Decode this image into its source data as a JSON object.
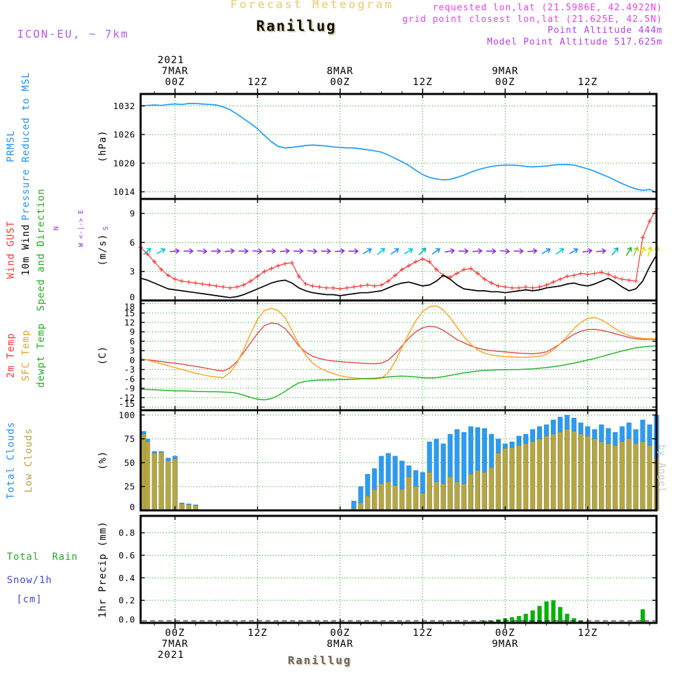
{
  "header": {
    "figure_title": "Forecast Meteogram",
    "station": "Ranillug",
    "model": "ICON-EU, ~ 7km",
    "meta_lines": [
      {
        "text": "requested lon,lat (21.5986E, 42.4922N)",
        "color": "#ee3cee"
      },
      {
        "text": "grid point closest lon,lat (21.625E, 42.5N)",
        "color": "#ee3cee"
      },
      {
        "text": "Point Altitude 444m",
        "color": "#b43cee"
      },
      {
        "text": "Model Point Altitude 517.625m",
        "color": "#b43cee"
      }
    ]
  },
  "footer": {
    "station": "Ranillug",
    "credit": "by Angel"
  },
  "labels": {
    "pressure": {
      "l1": "PRMSL",
      "l2": "Pressure Reduced to MSL",
      "unit": "(hPa)"
    },
    "wind": {
      "l1": "Wind GUST",
      "l2": "10m Wind",
      "l3": "Speed and Direction",
      "unit": "(m/s)",
      "compass_n": "N",
      "compass_s": "S",
      "compass_w": "W",
      "compass_e": "E",
      "compass_arrows": "<-|->"
    },
    "temperature": {
      "l1": "2m Temp",
      "l2": "SFC Temp",
      "l3": "dewpt Temp",
      "unit": "(C)"
    },
    "clouds": {
      "l1": "Total Clouds",
      "l2": "Low Clouds",
      "unit": "(%)"
    },
    "precip": {
      "l1": "Total  Rain",
      "l2": "Snow/1h",
      "l3": "[cm]",
      "unit_rot": "1hr Precip (mm)"
    }
  },
  "time_axis": {
    "year": "2021",
    "hours_domain": [
      -5,
      70
    ],
    "hours": {
      "start": -5,
      "step": 1,
      "count": 76
    },
    "major_ticks": [
      {
        "h": 0,
        "hour": "00Z",
        "day": "7MAR",
        "show_year": true
      },
      {
        "h": 12,
        "hour": "12Z"
      },
      {
        "h": 24,
        "hour": "00Z",
        "day": "8MAR"
      },
      {
        "h": 36,
        "hour": "12Z"
      },
      {
        "h": 48,
        "hour": "00Z",
        "day": "9MAR"
      },
      {
        "h": 60,
        "hour": "12Z"
      }
    ],
    "minor_step_hours": 3
  },
  "chart_data": [
    {
      "id": "pressure",
      "type": "line",
      "name": "PRMSL Pressure Reduced to MSL",
      "unit": "hPa",
      "ylim": [
        1012.5,
        1034.5
      ],
      "yticks": [
        1014,
        1020,
        1026,
        1032
      ],
      "series": [
        {
          "name": "PRMSL",
          "color": "#1e9aff",
          "width": 1.7,
          "values": [
            1032.0,
            1032.1,
            1032.2,
            1032.1,
            1032.3,
            1032.4,
            1032.3,
            1032.5,
            1032.5,
            1032.4,
            1032.3,
            1032.2,
            1031.8,
            1031.2,
            1030.3,
            1029.3,
            1028.3,
            1027.2,
            1025.8,
            1024.5,
            1023.5,
            1023.2,
            1023.3,
            1023.5,
            1023.7,
            1023.8,
            1023.7,
            1023.6,
            1023.4,
            1023.3,
            1023.2,
            1023.2,
            1023.0,
            1022.8,
            1022.6,
            1022.3,
            1021.7,
            1021.0,
            1020.3,
            1019.5,
            1018.5,
            1017.6,
            1017.0,
            1016.7,
            1016.5,
            1016.6,
            1017.0,
            1017.5,
            1018.1,
            1018.6,
            1019.0,
            1019.3,
            1019.5,
            1019.6,
            1019.6,
            1019.5,
            1019.3,
            1019.2,
            1019.3,
            1019.4,
            1019.6,
            1019.7,
            1019.7,
            1019.6,
            1019.2,
            1018.8,
            1018.3,
            1017.7,
            1017.1,
            1016.4,
            1015.7,
            1015.1,
            1014.6,
            1014.3,
            1014.5,
            1013.8
          ]
        }
      ]
    },
    {
      "id": "wind",
      "type": "line",
      "name": "Wind GUST / 10m Wind Speed and Direction",
      "unit": "m/s",
      "ylim": [
        0,
        10.5
      ],
      "yticks": [
        0,
        3,
        6,
        9
      ],
      "arrow_level": 5.1,
      "series": [
        {
          "name": "Wind GUST",
          "color": "#ff3030",
          "width": 1.2,
          "marker": "plus",
          "values": [
            5.5,
            4.8,
            4.0,
            3.2,
            2.6,
            2.2,
            2.0,
            1.9,
            1.8,
            1.7,
            1.6,
            1.5,
            1.4,
            1.3,
            1.4,
            1.6,
            2.0,
            2.5,
            3.0,
            3.3,
            3.6,
            3.8,
            3.9,
            2.5,
            1.7,
            1.5,
            1.4,
            1.3,
            1.3,
            1.2,
            1.3,
            1.4,
            1.5,
            1.6,
            1.5,
            1.6,
            2.0,
            2.6,
            3.2,
            3.6,
            4.0,
            4.3,
            4.0,
            3.2,
            2.6,
            2.4,
            2.8,
            3.2,
            3.3,
            2.8,
            2.2,
            1.8,
            1.5,
            1.4,
            1.3,
            1.3,
            1.4,
            1.3,
            1.4,
            1.6,
            1.9,
            2.2,
            2.5,
            2.6,
            2.8,
            2.7,
            2.8,
            2.9,
            2.7,
            2.4,
            2.2,
            2.1,
            2.0,
            6.5,
            8.2,
            9.5
          ]
        },
        {
          "name": "10m Wind",
          "color": "#000000",
          "width": 1.7,
          "values": [
            2.3,
            2.1,
            1.8,
            1.5,
            1.2,
            1.1,
            1.0,
            0.9,
            0.8,
            0.7,
            0.6,
            0.5,
            0.4,
            0.3,
            0.4,
            0.6,
            0.9,
            1.2,
            1.5,
            1.8,
            2.0,
            2.1,
            1.8,
            1.3,
            1.0,
            0.8,
            0.7,
            0.6,
            0.6,
            0.5,
            0.6,
            0.7,
            0.8,
            0.8,
            0.9,
            1.0,
            1.3,
            1.6,
            1.8,
            1.9,
            1.7,
            1.5,
            1.6,
            2.0,
            2.6,
            2.2,
            1.6,
            1.2,
            1.1,
            1.0,
            1.0,
            0.9,
            0.9,
            0.8,
            0.9,
            1.0,
            1.1,
            1.0,
            1.1,
            1.3,
            1.4,
            1.5,
            1.7,
            1.8,
            1.6,
            1.5,
            1.7,
            2.0,
            2.3,
            1.9,
            1.4,
            1.0,
            1.2,
            2.0,
            3.5,
            4.7
          ]
        }
      ],
      "direction_arrows": [
        {
          "h": -4,
          "a": -40,
          "c": "#00cccc"
        },
        {
          "h": -2,
          "a": -30,
          "c": "#00cccc"
        },
        {
          "h": 0,
          "a": -5,
          "c": "#8833ee"
        },
        {
          "h": 2,
          "a": 0,
          "c": "#8833ee"
        },
        {
          "h": 4,
          "a": 5,
          "c": "#8833ee"
        },
        {
          "h": 6,
          "a": 0,
          "c": "#8833ee"
        },
        {
          "h": 8,
          "a": -5,
          "c": "#8833ee"
        },
        {
          "h": 10,
          "a": 0,
          "c": "#8833ee"
        },
        {
          "h": 12,
          "a": 5,
          "c": "#8833ee"
        },
        {
          "h": 14,
          "a": 0,
          "c": "#8833ee"
        },
        {
          "h": 16,
          "a": -5,
          "c": "#8833ee"
        },
        {
          "h": 18,
          "a": 0,
          "c": "#8833ee"
        },
        {
          "h": 20,
          "a": 5,
          "c": "#8833ee"
        },
        {
          "h": 22,
          "a": 0,
          "c": "#8833ee"
        },
        {
          "h": 24,
          "a": -5,
          "c": "#8833ee"
        },
        {
          "h": 26,
          "a": 0,
          "c": "#8833ee"
        },
        {
          "h": 28,
          "a": -30,
          "c": "#1e90ff"
        },
        {
          "h": 30,
          "a": -40,
          "c": "#00cccc"
        },
        {
          "h": 32,
          "a": -35,
          "c": "#1e90ff"
        },
        {
          "h": 34,
          "a": -30,
          "c": "#00cccc"
        },
        {
          "h": 36,
          "a": -45,
          "c": "#00b7b7"
        },
        {
          "h": 38,
          "a": -35,
          "c": "#1e90ff"
        },
        {
          "h": 40,
          "a": -10,
          "c": "#8833ee"
        },
        {
          "h": 42,
          "a": 0,
          "c": "#8833ee"
        },
        {
          "h": 44,
          "a": -5,
          "c": "#8833ee"
        },
        {
          "h": 46,
          "a": 0,
          "c": "#8833ee"
        },
        {
          "h": 48,
          "a": 5,
          "c": "#8833ee"
        },
        {
          "h": 50,
          "a": 0,
          "c": "#8833ee"
        },
        {
          "h": 52,
          "a": -5,
          "c": "#8833ee"
        },
        {
          "h": 54,
          "a": -30,
          "c": "#1e90ff"
        },
        {
          "h": 56,
          "a": -35,
          "c": "#00cccc"
        },
        {
          "h": 58,
          "a": -30,
          "c": "#1e90ff"
        },
        {
          "h": 60,
          "a": -10,
          "c": "#8833ee"
        },
        {
          "h": 62,
          "a": -5,
          "c": "#8833ee"
        },
        {
          "h": 64,
          "a": -50,
          "c": "#00b7b7"
        },
        {
          "h": 66,
          "a": -60,
          "c": "#22bb22"
        },
        {
          "h": 67,
          "a": -65,
          "c": "#99cc22"
        },
        {
          "h": 68,
          "a": -70,
          "c": "#dddd00"
        },
        {
          "h": 69,
          "a": -72,
          "c": "#dddd00"
        },
        {
          "h": 70,
          "a": -75,
          "c": "#dddd00"
        }
      ]
    },
    {
      "id": "temperature",
      "type": "line",
      "name": "2m / SFC / dewpoint Temperature",
      "unit": "C",
      "ylim": [
        -16,
        19
      ],
      "yticks": [
        -15,
        -12,
        -9,
        -6,
        -3,
        0,
        3,
        6,
        9,
        12,
        15,
        18
      ],
      "series": [
        {
          "name": "2m Temp",
          "color": "#e05252",
          "width": 1.5,
          "values": [
            0.3,
            0.1,
            -0.2,
            -0.5,
            -0.8,
            -1.0,
            -1.3,
            -1.7,
            -2.0,
            -2.4,
            -2.8,
            -3.2,
            -3.5,
            -2.5,
            -0.5,
            2.5,
            5.5,
            8.5,
            11.0,
            11.8,
            11.5,
            10.0,
            7.5,
            4.5,
            2.5,
            1.2,
            0.5,
            0.0,
            -0.3,
            -0.5,
            -0.7,
            -0.8,
            -1.0,
            -1.1,
            -1.2,
            -1.0,
            0.0,
            2.0,
            4.5,
            7.0,
            9.0,
            10.3,
            10.8,
            10.5,
            9.5,
            8.0,
            6.5,
            5.5,
            4.5,
            3.8,
            3.3,
            3.0,
            2.8,
            2.6,
            2.4,
            2.2,
            2.1,
            2.0,
            2.2,
            2.6,
            3.8,
            5.2,
            6.8,
            8.2,
            9.2,
            9.7,
            9.8,
            9.5,
            9.0,
            8.4,
            7.8,
            7.2,
            6.8,
            6.6,
            6.6,
            6.6
          ]
        },
        {
          "name": "SFC Temp",
          "color": "#ffa426",
          "width": 1.5,
          "values": [
            0.5,
            0.0,
            -0.6,
            -1.2,
            -1.8,
            -2.4,
            -3.0,
            -3.6,
            -4.2,
            -4.7,
            -5.1,
            -5.4,
            -5.6,
            -4.0,
            -1.0,
            3.5,
            8.5,
            13.0,
            15.8,
            16.5,
            15.8,
            13.5,
            9.5,
            5.0,
            1.5,
            -1.0,
            -2.5,
            -3.5,
            -4.3,
            -5.0,
            -5.4,
            -5.7,
            -5.9,
            -6.0,
            -6.1,
            -5.8,
            -4.0,
            -0.5,
            4.0,
            8.5,
            12.5,
            15.5,
            17.0,
            17.3,
            16.0,
            13.5,
            10.5,
            7.5,
            5.0,
            3.2,
            2.2,
            1.6,
            1.3,
            1.1,
            1.0,
            0.9,
            0.9,
            1.0,
            1.2,
            1.8,
            3.2,
            5.2,
            7.6,
            10.0,
            12.0,
            13.3,
            13.6,
            12.8,
            11.5,
            10.0,
            8.7,
            7.8,
            7.2,
            6.9,
            6.8,
            6.8
          ]
        },
        {
          "name": "dewpt Temp",
          "color": "#28b428",
          "width": 1.5,
          "values": [
            -9.3,
            -9.4,
            -9.5,
            -9.6,
            -9.7,
            -9.8,
            -9.8,
            -9.9,
            -10.0,
            -10.0,
            -10.1,
            -10.1,
            -10.2,
            -10.3,
            -10.6,
            -11.2,
            -11.9,
            -12.5,
            -12.7,
            -12.3,
            -11.3,
            -10.0,
            -8.5,
            -7.3,
            -6.8,
            -6.5,
            -6.4,
            -6.3,
            -6.3,
            -6.2,
            -6.2,
            -6.1,
            -6.0,
            -5.9,
            -5.8,
            -5.6,
            -5.4,
            -5.2,
            -5.1,
            -5.2,
            -5.4,
            -5.6,
            -5.7,
            -5.6,
            -5.3,
            -4.9,
            -4.5,
            -4.1,
            -3.8,
            -3.5,
            -3.3,
            -3.2,
            -3.1,
            -3.1,
            -3.0,
            -3.0,
            -2.9,
            -2.8,
            -2.6,
            -2.4,
            -2.1,
            -1.8,
            -1.4,
            -1.0,
            -0.5,
            0.0,
            0.5,
            1.1,
            1.7,
            2.3,
            2.9,
            3.4,
            3.9,
            4.2,
            4.4,
            4.5
          ]
        }
      ]
    },
    {
      "id": "clouds",
      "type": "bar",
      "name": "Total / Low Cloud Cover",
      "unit": "%",
      "ylim": [
        0,
        105
      ],
      "yticks": [
        0,
        25,
        50,
        75,
        100
      ],
      "series": [
        {
          "name": "Total Clouds",
          "color": "#2b9bf0",
          "values": [
            83,
            75,
            62,
            62,
            55,
            57,
            8,
            7,
            6,
            0,
            0,
            0,
            0,
            0,
            0,
            0,
            0,
            0,
            0,
            0,
            0,
            0,
            0,
            0,
            0,
            0,
            0,
            0,
            0,
            0,
            0,
            10,
            25,
            38,
            44,
            57,
            60,
            57,
            52,
            47,
            42,
            40,
            72,
            75,
            70,
            80,
            85,
            82,
            88,
            87,
            86,
            80,
            75,
            70,
            72,
            78,
            80,
            85,
            88,
            90,
            95,
            98,
            100,
            97,
            92,
            88,
            85,
            90,
            86,
            82,
            88,
            92,
            85,
            95,
            90,
            100
          ]
        },
        {
          "name": "Low Clouds",
          "color": "#b5a642",
          "values": [
            80,
            72,
            60,
            61,
            52,
            54,
            7,
            6,
            5,
            0,
            0,
            0,
            0,
            0,
            0,
            0,
            0,
            0,
            0,
            0,
            0,
            0,
            0,
            0,
            0,
            0,
            0,
            0,
            0,
            0,
            0,
            2,
            8,
            15,
            22,
            28,
            30,
            26,
            22,
            35,
            25,
            18,
            40,
            30,
            28,
            35,
            30,
            28,
            38,
            42,
            40,
            45,
            60,
            65,
            66,
            68,
            70,
            72,
            75,
            78,
            80,
            82,
            85,
            83,
            80,
            78,
            75,
            72,
            70,
            68,
            72,
            75,
            70,
            72,
            68,
            55
          ]
        }
      ]
    },
    {
      "id": "precip",
      "type": "bar",
      "name": "1hr Precipitation",
      "unit": "mm",
      "ylim": [
        0,
        0.95
      ],
      "yticks": [
        0,
        0.2,
        0.4,
        0.6,
        0.8
      ],
      "ytick_labels": [
        "0.0",
        "0.2",
        "0.4",
        "0.6",
        "0.8"
      ],
      "series": [
        {
          "name": "Rain",
          "color": "#00b400",
          "values": [
            0,
            0,
            0,
            0,
            0,
            0,
            0,
            0,
            0,
            0,
            0,
            0,
            0,
            0,
            0,
            0,
            0,
            0,
            0,
            0,
            0,
            0,
            0,
            0,
            0,
            0,
            0,
            0,
            0,
            0,
            0,
            0,
            0,
            0,
            0,
            0,
            0,
            0,
            0,
            0,
            0,
            0,
            0,
            0,
            0,
            0,
            0,
            0,
            0.01,
            0.01,
            0.02,
            0.02,
            0.03,
            0.04,
            0.05,
            0.06,
            0.08,
            0.11,
            0.15,
            0.19,
            0.2,
            0.14,
            0.08,
            0.04,
            0.02,
            0.01,
            0,
            0,
            0,
            0,
            0,
            0,
            0,
            0.12,
            0,
            0
          ]
        }
      ]
    }
  ]
}
